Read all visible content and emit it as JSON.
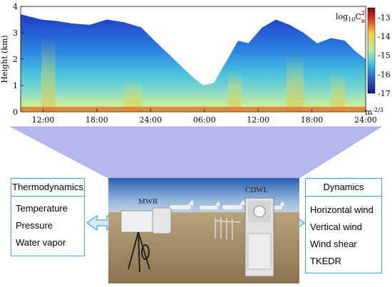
{
  "chart": {
    "y_axis_label": "Height (km)",
    "y_ticks": [
      "0",
      "1",
      "2",
      "3",
      "4"
    ],
    "x_ticks": [
      "12:00",
      "18:00",
      "24:00",
      "06:00",
      "12:00",
      "18:00",
      "24:00"
    ],
    "colorbar_title": "log10C2n",
    "colorbar_title_base": "log",
    "colorbar_title_sub": "10",
    "colorbar_title_var": "C",
    "colorbar_title_sup": "2",
    "colorbar_title_subn": "n",
    "colorbar_ticks": [
      "-13",
      "-14",
      "-15",
      "-16",
      "-17"
    ],
    "colorbar_unit": "m",
    "colorbar_unit_exp": "-2/3",
    "colors": {
      "low": "#1a2cb8",
      "mid": "#3fc8d8",
      "high": "#f0e24a",
      "peak": "#d83020",
      "highest": "#8a1010"
    }
  },
  "chart_data": {
    "type": "heatmap",
    "xlabel": "",
    "ylabel": "Height (km)",
    "x_ticks": [
      "12:00",
      "18:00",
      "24:00",
      "06:00",
      "12:00",
      "18:00",
      "24:00"
    ],
    "ylim": [
      0,
      4
    ],
    "colorbar": {
      "label": "log10 Cn2",
      "unit": "m^-2/3",
      "range": [
        -17,
        -12.5
      ],
      "ticks": [
        -13,
        -14,
        -15,
        -16,
        -17
      ]
    },
    "top_of_data_km": [
      [
        0.0,
        3.7
      ],
      [
        0.03,
        3.6
      ],
      [
        0.06,
        3.5
      ],
      [
        0.1,
        3.45
      ],
      [
        0.15,
        3.35
      ],
      [
        0.2,
        3.3
      ],
      [
        0.25,
        3.5
      ],
      [
        0.3,
        3.4
      ],
      [
        0.35,
        3.2
      ],
      [
        0.38,
        2.8
      ],
      [
        0.42,
        2.3
      ],
      [
        0.46,
        1.8
      ],
      [
        0.5,
        1.3
      ],
      [
        0.53,
        1.0
      ],
      [
        0.56,
        1.1
      ],
      [
        0.6,
        2.0
      ],
      [
        0.63,
        2.7
      ],
      [
        0.66,
        2.6
      ],
      [
        0.7,
        3.2
      ],
      [
        0.74,
        3.5
      ],
      [
        0.78,
        3.3
      ],
      [
        0.82,
        3.0
      ],
      [
        0.86,
        2.6
      ],
      [
        0.9,
        2.8
      ],
      [
        0.94,
        2.7
      ],
      [
        0.97,
        2.3
      ],
      [
        1.0,
        2.0
      ]
    ]
  },
  "left_box": {
    "title": "Thermodynamics",
    "items": [
      "Temperature",
      "Pressure",
      "Water vapor"
    ]
  },
  "right_box": {
    "title": "Dynamics",
    "items": [
      "Horizontal wind",
      "Vertical wind",
      "Wind shear",
      "TKEDR"
    ]
  },
  "photo": {
    "label_mwr": "MWR",
    "label_cdwl": "CDWL"
  },
  "style_colors": {
    "box_border": "#3aa8d8",
    "callout_fill": "#b4b8ee",
    "arrow_fill": "#d6ecf7",
    "arrow_stroke": "#3aa8d8"
  }
}
